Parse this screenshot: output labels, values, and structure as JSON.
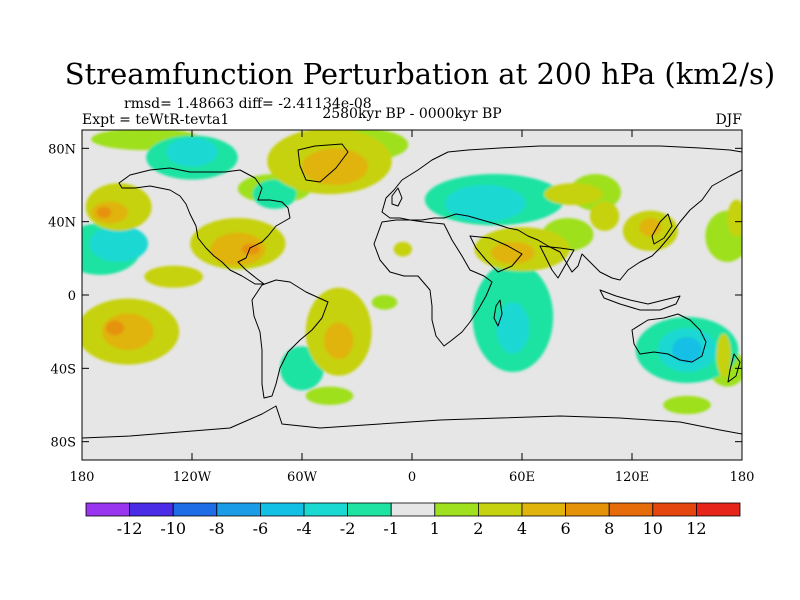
{
  "chart_data": {
    "type": "contour-map",
    "title": "Streamfunction Perturbation at 200 hPa (km2/s)",
    "stats_label": "rmsd= 1.48663 diff= -2.41134e-08",
    "experiment_label": "Expt = teWtR-tevta1",
    "period_label": "2580kyr BP - 0000kyr BP",
    "season_label": "DJF",
    "xaxis": {
      "range": [
        -180,
        180
      ],
      "ticks": [
        -180,
        -120,
        -60,
        0,
        60,
        120,
        180
      ],
      "tick_labels": [
        "180",
        "120W",
        "60W",
        "0",
        "60E",
        "120E",
        "180"
      ]
    },
    "yaxis": {
      "range": [
        -90,
        90
      ],
      "ticks": [
        80,
        40,
        0,
        -40,
        -80
      ],
      "tick_labels": [
        "80N",
        "40N",
        "0",
        "40S",
        "80S"
      ]
    },
    "colorbar": {
      "colors": [
        "#9a35ef",
        "#4a2ce6",
        "#1e6ce6",
        "#1a9ce6",
        "#12bfe5",
        "#1ad8d2",
        "#1fe3a2",
        "#e6e6e6",
        "#9fe01f",
        "#c6d20f",
        "#e0b40a",
        "#e69208",
        "#e66c0a",
        "#e5460e",
        "#e6241a"
      ],
      "labels": [
        "-12",
        "-10",
        "-8",
        "-6",
        "-4",
        "-2",
        "-1",
        "1",
        "2",
        "4",
        "6",
        "8",
        "10",
        "12"
      ]
    },
    "regions": [
      {
        "level": 1,
        "lon": -145,
        "lat": 85,
        "rx": 30,
        "ry": 6
      },
      {
        "level": 1,
        "lon": -75,
        "lat": 58,
        "rx": 20,
        "ry": 8
      },
      {
        "level": 1,
        "lon": -28,
        "lat": 82,
        "rx": 26,
        "ry": 9
      },
      {
        "level": 1,
        "lon": 85,
        "lat": 33,
        "rx": 14,
        "ry": 9
      },
      {
        "level": 1,
        "lon": -15,
        "lat": -4,
        "rx": 7,
        "ry": 4
      },
      {
        "level": 1,
        "lon": -45,
        "lat": -55,
        "rx": 13,
        "ry": 5
      },
      {
        "level": 1,
        "lon": 150,
        "lat": -60,
        "rx": 13,
        "ry": 5
      },
      {
        "level": 1,
        "lon": 100,
        "lat": 56,
        "rx": 14,
        "ry": 10
      },
      {
        "level": 1,
        "lon": 172,
        "lat": 32,
        "rx": 12,
        "ry": 14
      },
      {
        "level": 1,
        "lon": 172,
        "lat": -40,
        "rx": 10,
        "ry": 10
      },
      {
        "level": -1,
        "lon": -120,
        "lat": 75,
        "rx": 25,
        "ry": 12
      },
      {
        "level": -1,
        "lon": 45,
        "lat": 52,
        "rx": 38,
        "ry": 14
      },
      {
        "level": -1,
        "lon": 55,
        "lat": -12,
        "rx": 22,
        "ry": 30
      },
      {
        "level": -1,
        "lon": -60,
        "lat": -40,
        "rx": 12,
        "ry": 12
      },
      {
        "level": -1,
        "lon": 150,
        "lat": -30,
        "rx": 28,
        "ry": 18
      },
      {
        "level": -1,
        "lon": -170,
        "lat": 25,
        "rx": 22,
        "ry": 14
      },
      {
        "level": -1,
        "lon": -75,
        "lat": 55,
        "rx": 12,
        "ry": 8
      },
      {
        "level": -2,
        "lon": -160,
        "lat": 28,
        "rx": 16,
        "ry": 10
      },
      {
        "level": -2,
        "lon": 40,
        "lat": 50,
        "rx": 22,
        "ry": 10
      },
      {
        "level": -2,
        "lon": 150,
        "lat": -30,
        "rx": 16,
        "ry": 12
      },
      {
        "level": -2,
        "lon": -120,
        "lat": 78,
        "rx": 14,
        "ry": 8
      },
      {
        "level": -2,
        "lon": 55,
        "lat": -18,
        "rx": 9,
        "ry": 14
      },
      {
        "level": -4,
        "lon": 150,
        "lat": -30,
        "rx": 8,
        "ry": 7
      },
      {
        "level": 2,
        "lon": -160,
        "lat": 48,
        "rx": 18,
        "ry": 13
      },
      {
        "level": 2,
        "lon": -95,
        "lat": 28,
        "rx": 26,
        "ry": 14
      },
      {
        "level": 2,
        "lon": -130,
        "lat": 10,
        "rx": 16,
        "ry": 6
      },
      {
        "level": 2,
        "lon": -155,
        "lat": -20,
        "rx": 28,
        "ry": 18
      },
      {
        "level": 2,
        "lon": -45,
        "lat": 73,
        "rx": 34,
        "ry": 18
      },
      {
        "level": 2,
        "lon": -40,
        "lat": -20,
        "rx": 18,
        "ry": 24
      },
      {
        "level": 2,
        "lon": 60,
        "lat": 25,
        "rx": 26,
        "ry": 12
      },
      {
        "level": 2,
        "lon": 130,
        "lat": 35,
        "rx": 15,
        "ry": 11
      },
      {
        "level": 2,
        "lon": 105,
        "lat": 43,
        "rx": 8,
        "ry": 8
      },
      {
        "level": 2,
        "lon": 88,
        "lat": 55,
        "rx": 16,
        "ry": 6
      },
      {
        "level": 2,
        "lon": -5,
        "lat": 25,
        "rx": 5,
        "ry": 4
      },
      {
        "level": 2,
        "lon": 177,
        "lat": 42,
        "rx": 5,
        "ry": 10
      },
      {
        "level": 2,
        "lon": 170,
        "lat": -33,
        "rx": 4,
        "ry": 12
      },
      {
        "level": 4,
        "lon": -165,
        "lat": 45,
        "rx": 10,
        "ry": 6
      },
      {
        "level": 4,
        "lon": -95,
        "lat": 25,
        "rx": 15,
        "ry": 9
      },
      {
        "level": 4,
        "lon": -155,
        "lat": -20,
        "rx": 14,
        "ry": 10
      },
      {
        "level": 4,
        "lon": -42,
        "lat": 70,
        "rx": 18,
        "ry": 10
      },
      {
        "level": 4,
        "lon": -40,
        "lat": -25,
        "rx": 8,
        "ry": 10
      },
      {
        "level": 4,
        "lon": 55,
        "lat": 23,
        "rx": 12,
        "ry": 6
      },
      {
        "level": 4,
        "lon": 130,
        "lat": 37,
        "rx": 6,
        "ry": 5
      },
      {
        "level": 6,
        "lon": -162,
        "lat": -18,
        "rx": 5,
        "ry": 4
      },
      {
        "level": 6,
        "lon": -88,
        "lat": 25,
        "rx": 5,
        "ry": 3
      },
      {
        "level": 6,
        "lon": -168,
        "lat": 45,
        "rx": 4,
        "ry": 3
      }
    ]
  }
}
